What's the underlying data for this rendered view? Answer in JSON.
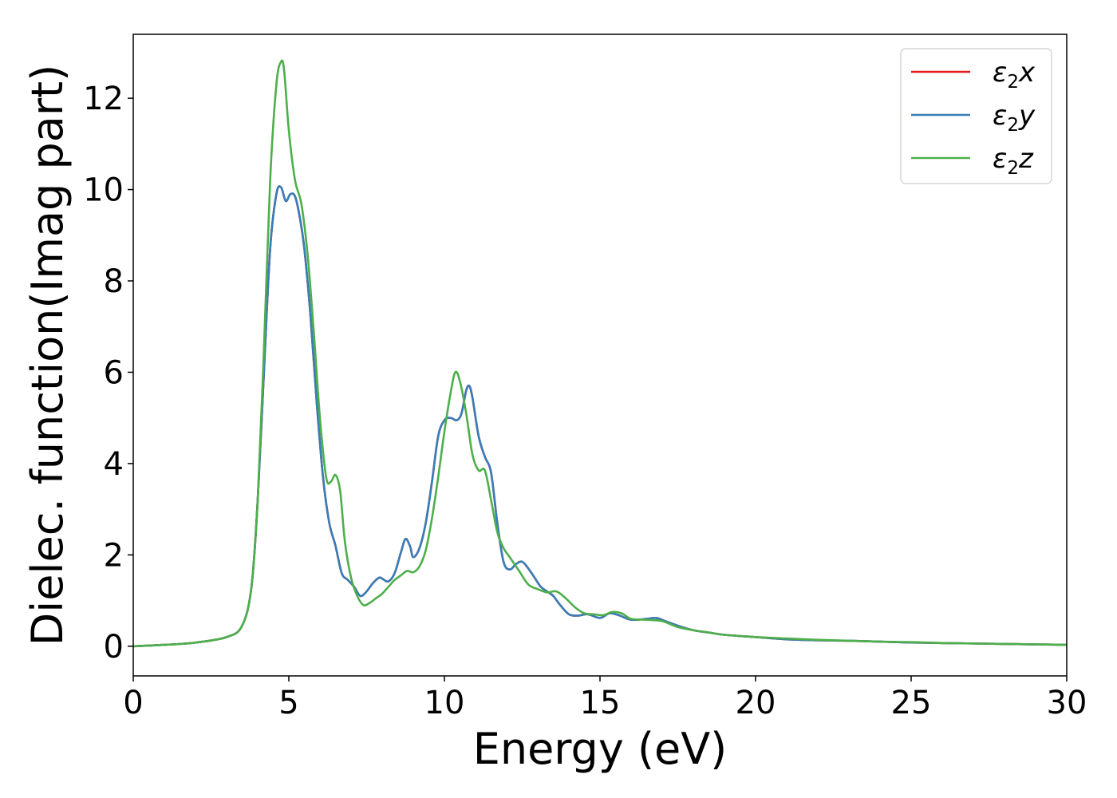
{
  "chart_data": {
    "type": "line",
    "xlabel": "Energy (eV)",
    "ylabel": "Dielec. function(Imag part)",
    "xlim": [
      0,
      30
    ],
    "ylim": [
      -0.65,
      13.4
    ],
    "xticks": [
      0,
      5,
      10,
      15,
      20,
      25,
      30
    ],
    "yticks": [
      0,
      2,
      4,
      6,
      8,
      10,
      12
    ],
    "grid": false,
    "legend_position": "top-right",
    "series": [
      {
        "name": "ε2x",
        "legend": {
          "base": "ε",
          "sub": "2",
          "suffix": "x"
        },
        "color": "#e41a1c",
        "x": [
          0,
          1,
          2,
          3,
          3.5,
          3.8,
          4.0,
          4.2,
          4.4,
          4.6,
          4.75,
          4.9,
          5.05,
          5.2,
          5.35,
          5.5,
          5.7,
          5.9,
          6.1,
          6.3,
          6.5,
          6.7,
          6.9,
          7.1,
          7.3,
          7.5,
          7.7,
          7.9,
          8.0,
          8.2,
          8.4,
          8.6,
          8.75,
          8.9,
          9.0,
          9.2,
          9.4,
          9.6,
          9.8,
          10.0,
          10.2,
          10.4,
          10.55,
          10.7,
          10.8,
          10.9,
          11.1,
          11.3,
          11.5,
          11.7,
          11.9,
          12.1,
          12.3,
          12.5,
          12.7,
          12.9,
          13.1,
          13.3,
          13.5,
          13.7,
          14.0,
          14.3,
          14.6,
          15.0,
          15.3,
          15.6,
          16.0,
          16.5,
          16.8,
          17.1,
          17.5,
          18.0,
          18.5,
          19.0,
          20.0,
          21.0,
          22.0,
          23.0,
          24.0,
          25.0,
          26.0,
          27.0,
          28.0,
          29.0,
          30.0
        ],
        "y": [
          0.0,
          0.03,
          0.08,
          0.2,
          0.45,
          1.3,
          3.2,
          6.0,
          8.7,
          9.9,
          10.05,
          9.75,
          9.9,
          9.85,
          9.4,
          8.7,
          7.2,
          5.3,
          3.7,
          2.7,
          2.2,
          1.6,
          1.45,
          1.3,
          1.1,
          1.2,
          1.38,
          1.5,
          1.48,
          1.42,
          1.6,
          2.05,
          2.35,
          2.18,
          1.95,
          2.15,
          2.7,
          3.6,
          4.6,
          4.95,
          5.0,
          4.95,
          5.1,
          5.6,
          5.7,
          5.45,
          4.6,
          4.15,
          3.8,
          2.7,
          1.85,
          1.68,
          1.8,
          1.85,
          1.7,
          1.5,
          1.3,
          1.2,
          1.1,
          0.92,
          0.7,
          0.67,
          0.7,
          0.62,
          0.72,
          0.68,
          0.58,
          0.6,
          0.62,
          0.55,
          0.45,
          0.35,
          0.3,
          0.25,
          0.2,
          0.15,
          0.13,
          0.12,
          0.1,
          0.08,
          0.07,
          0.06,
          0.05,
          0.04,
          0.03
        ]
      },
      {
        "name": "ε2y",
        "legend": {
          "base": "ε",
          "sub": "2",
          "suffix": "y"
        },
        "color": "#377eb8",
        "x": [
          0,
          1,
          2,
          3,
          3.5,
          3.8,
          4.0,
          4.2,
          4.4,
          4.6,
          4.75,
          4.9,
          5.05,
          5.2,
          5.35,
          5.5,
          5.7,
          5.9,
          6.1,
          6.3,
          6.5,
          6.7,
          6.9,
          7.1,
          7.3,
          7.5,
          7.7,
          7.9,
          8.0,
          8.2,
          8.4,
          8.6,
          8.75,
          8.9,
          9.0,
          9.2,
          9.4,
          9.6,
          9.8,
          10.0,
          10.2,
          10.4,
          10.55,
          10.7,
          10.8,
          10.9,
          11.1,
          11.3,
          11.5,
          11.7,
          11.9,
          12.1,
          12.3,
          12.5,
          12.7,
          12.9,
          13.1,
          13.3,
          13.5,
          13.7,
          14.0,
          14.3,
          14.6,
          15.0,
          15.3,
          15.6,
          16.0,
          16.5,
          16.8,
          17.1,
          17.5,
          18.0,
          18.5,
          19.0,
          20.0,
          21.0,
          22.0,
          23.0,
          24.0,
          25.0,
          26.0,
          27.0,
          28.0,
          29.0,
          30.0
        ],
        "y": [
          0.0,
          0.03,
          0.08,
          0.2,
          0.45,
          1.3,
          3.2,
          6.0,
          8.7,
          9.9,
          10.05,
          9.75,
          9.9,
          9.85,
          9.4,
          8.7,
          7.2,
          5.3,
          3.7,
          2.7,
          2.2,
          1.6,
          1.45,
          1.3,
          1.1,
          1.2,
          1.38,
          1.5,
          1.48,
          1.42,
          1.6,
          2.05,
          2.35,
          2.18,
          1.95,
          2.15,
          2.7,
          3.6,
          4.6,
          4.95,
          5.0,
          4.95,
          5.1,
          5.6,
          5.7,
          5.45,
          4.6,
          4.15,
          3.8,
          2.7,
          1.85,
          1.68,
          1.8,
          1.85,
          1.7,
          1.5,
          1.3,
          1.2,
          1.1,
          0.92,
          0.7,
          0.67,
          0.7,
          0.62,
          0.72,
          0.68,
          0.58,
          0.6,
          0.62,
          0.55,
          0.45,
          0.35,
          0.3,
          0.25,
          0.2,
          0.15,
          0.13,
          0.12,
          0.1,
          0.08,
          0.07,
          0.06,
          0.05,
          0.04,
          0.03
        ]
      },
      {
        "name": "ε2z",
        "legend": {
          "base": "ε",
          "sub": "2",
          "suffix": "z"
        },
        "color": "#4daf4a",
        "x": [
          0,
          1,
          2,
          3,
          3.5,
          3.8,
          4.0,
          4.2,
          4.4,
          4.6,
          4.75,
          4.85,
          5.0,
          5.2,
          5.4,
          5.6,
          5.8,
          6.0,
          6.2,
          6.35,
          6.5,
          6.65,
          6.8,
          7.0,
          7.2,
          7.4,
          7.6,
          7.8,
          8.0,
          8.2,
          8.4,
          8.6,
          8.8,
          9.0,
          9.2,
          9.4,
          9.6,
          9.8,
          10.0,
          10.2,
          10.35,
          10.5,
          10.7,
          10.9,
          11.1,
          11.3,
          11.5,
          11.7,
          11.9,
          12.1,
          12.4,
          12.7,
          13.0,
          13.3,
          13.6,
          13.9,
          14.2,
          14.5,
          14.8,
          15.1,
          15.4,
          15.7,
          16.0,
          16.5,
          17.0,
          17.5,
          18.0,
          18.5,
          19.0,
          20.0,
          21.0,
          22.0,
          23.0,
          24.0,
          25.0,
          26.0,
          27.0,
          28.0,
          29.0,
          30.0
        ],
        "y": [
          0.0,
          0.03,
          0.08,
          0.2,
          0.45,
          1.3,
          3.2,
          6.5,
          10.2,
          12.3,
          12.8,
          12.6,
          11.3,
          10.2,
          9.7,
          8.6,
          6.9,
          5.0,
          3.7,
          3.6,
          3.75,
          3.4,
          2.3,
          1.5,
          1.1,
          0.9,
          0.95,
          1.05,
          1.15,
          1.3,
          1.45,
          1.55,
          1.65,
          1.62,
          1.75,
          2.1,
          2.8,
          3.7,
          4.7,
          5.55,
          6.0,
          5.8,
          5.1,
          4.2,
          3.85,
          3.85,
          3.2,
          2.5,
          2.15,
          1.95,
          1.65,
          1.35,
          1.25,
          1.18,
          1.2,
          1.05,
          0.85,
          0.72,
          0.7,
          0.68,
          0.75,
          0.72,
          0.6,
          0.58,
          0.55,
          0.42,
          0.35,
          0.3,
          0.25,
          0.2,
          0.17,
          0.14,
          0.12,
          0.1,
          0.09,
          0.07,
          0.06,
          0.05,
          0.04,
          0.03
        ]
      }
    ]
  }
}
